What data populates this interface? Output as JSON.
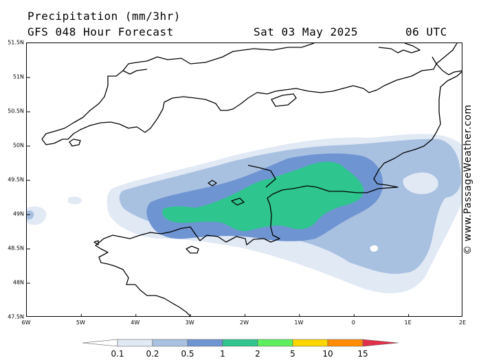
{
  "header": {
    "title": "Precipitation (mm/3hr)",
    "subtitle": "GFS 048 Hour Forecast",
    "valid_date": "Sat 03 May 2025",
    "valid_time": "06 UTC"
  },
  "credit": "© www.PassageWeather.com",
  "map": {
    "lat_ticks": [
      "51.5N",
      "51N",
      "50.5N",
      "50N",
      "49.5N",
      "49N",
      "48.5N",
      "48N",
      "47.5N"
    ],
    "lon_ticks": [
      "6W",
      "5W",
      "4W",
      "3W",
      "2W",
      "1W",
      "0",
      "1E",
      "2E"
    ],
    "lat_range": [
      47.5,
      51.5
    ],
    "lon_range": [
      -6,
      2
    ],
    "land_outline_color": "#000000",
    "precip_colors": [
      "#e1e9f5",
      "#a9c1e1",
      "#6f94d2",
      "#2fc58f"
    ]
  },
  "legend": {
    "labels": [
      "0.1",
      "0.2",
      "0.5",
      "1",
      "2",
      "5",
      "10",
      "15"
    ],
    "colors": [
      "#ffffff",
      "#e1e9f5",
      "#a9c1e1",
      "#6f94d2",
      "#2fc58f",
      "#5cf05c",
      "#ffd700",
      "#ff8c00",
      "#e0304a"
    ]
  }
}
